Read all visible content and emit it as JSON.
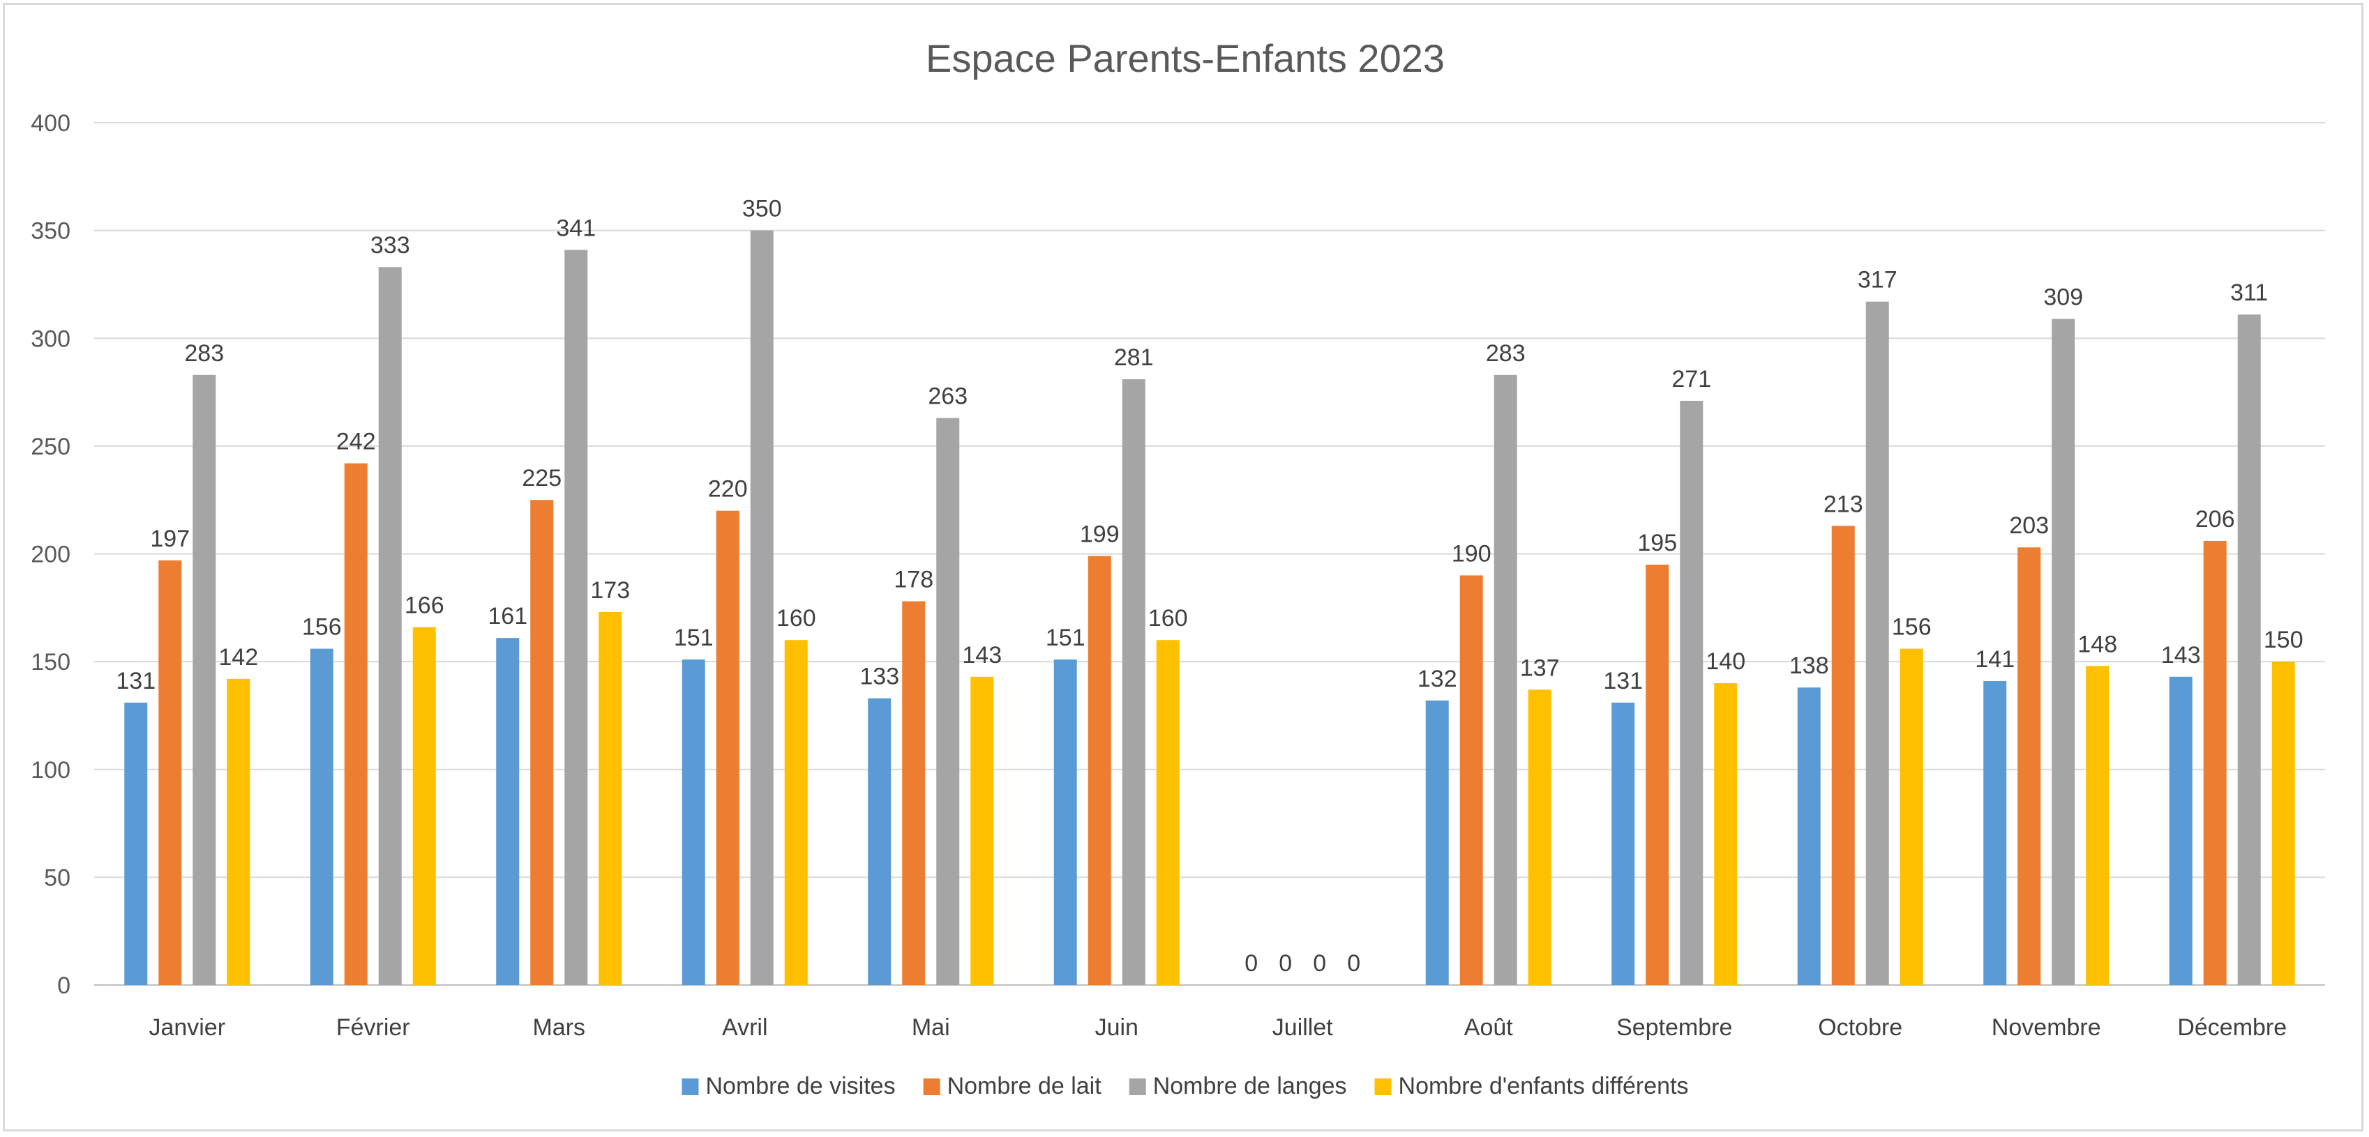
{
  "chart_data": {
    "type": "bar",
    "title": "Espace Parents-Enfants 2023",
    "xlabel": "",
    "ylabel": "",
    "ylim": [
      0,
      400
    ],
    "yticks": [
      0,
      50,
      100,
      150,
      200,
      250,
      300,
      350,
      400
    ],
    "grid": true,
    "legend_position": "bottom",
    "categories": [
      "Janvier",
      "Février",
      "Mars",
      "Avril",
      "Mai",
      "Juin",
      "Juillet",
      "Août",
      "Septembre",
      "Octobre",
      "Novembre",
      "Décembre"
    ],
    "series": [
      {
        "name": "Nombre de visites",
        "color": "#5b9bd5",
        "values": [
          131,
          156,
          161,
          151,
          133,
          151,
          0,
          132,
          131,
          138,
          141,
          143
        ]
      },
      {
        "name": "Nombre de lait",
        "color": "#ed7d31",
        "values": [
          197,
          242,
          225,
          220,
          178,
          199,
          0,
          190,
          195,
          213,
          203,
          206
        ]
      },
      {
        "name": "Nombre de langes",
        "color": "#a5a5a5",
        "values": [
          283,
          333,
          341,
          350,
          263,
          281,
          0,
          283,
          271,
          317,
          309,
          311
        ]
      },
      {
        "name": "Nombre d'enfants différents",
        "color": "#ffc000",
        "values": [
          142,
          166,
          173,
          160,
          143,
          160,
          0,
          137,
          140,
          156,
          148,
          150
        ]
      }
    ],
    "data_labels": true
  }
}
